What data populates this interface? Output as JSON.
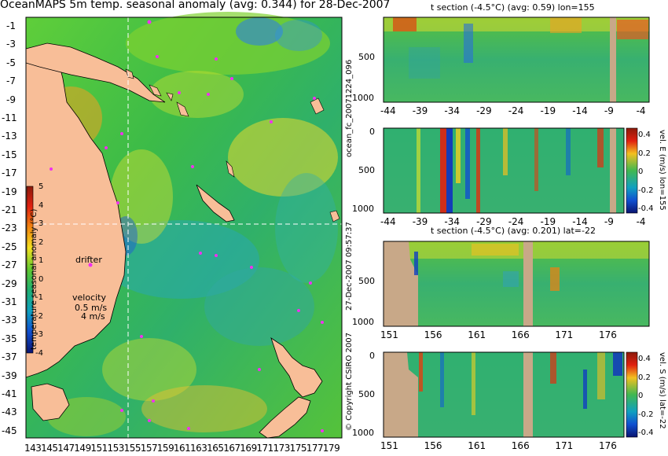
{
  "map": {
    "title": "OceanMAPS 5m temp. seasonal anomaly (avg: 0.344) for 28-Dec-2007",
    "lat_labels": [
      "-1",
      "-3",
      "-5",
      "-7",
      "-9",
      "-11",
      "-13",
      "-15",
      "-17",
      "-19",
      "-21",
      "-23",
      "-25",
      "-27",
      "-29",
      "-31",
      "-33",
      "-35",
      "-37",
      "-39",
      "-41",
      "-43",
      "-45"
    ],
    "lon_labels": [
      "143",
      "145",
      "147",
      "149",
      "151",
      "153",
      "155",
      "157",
      "159",
      "161",
      "163",
      "165",
      "167",
      "169",
      "171",
      "173",
      "175",
      "177",
      "179"
    ],
    "colorbar_ticks": [
      "5",
      "4",
      "3",
      "2",
      "1",
      "0",
      "-1",
      "-2",
      "-3",
      "-4"
    ],
    "colorbar_label": "temperature seasonal anomaly (°C)",
    "drifter_label": "drifter",
    "velocity_label": "velocity",
    "velocity_scale_1": "0.5 m/s",
    "velocity_scale_2": "4 m/s",
    "section_lon": 155,
    "section_lat": -22
  },
  "side_labels": {
    "run": "ocean_fc_20071224_096",
    "issued": "27-Dec-2007 09:57:37",
    "copyright": "© Copyright CSIRO 2007"
  },
  "panels": [
    {
      "title": "t section (-4.5°C) (avg: 0.59) lon=155",
      "y_ticks": [
        "500",
        "1000"
      ],
      "x_ticks": [
        "-44",
        "-39",
        "-34",
        "-29",
        "-24",
        "-19",
        "-14",
        "-9",
        "-4"
      ],
      "has_colorbar": false
    },
    {
      "title": "",
      "y_ticks": [
        "0",
        "500",
        "1000"
      ],
      "x_ticks": [
        "-44",
        "-39",
        "-34",
        "-29",
        "-24",
        "-19",
        "-14",
        "-9",
        "-4"
      ],
      "has_colorbar": true,
      "colorbar_ticks": [
        "0.4",
        "0.2",
        "0",
        "-0.2",
        "-0.4"
      ],
      "colorbar_label": "vel. E (m/s) lon=155"
    },
    {
      "title": "t section (-4.5°C) (avg: 0.201) lat=-22",
      "y_ticks": [
        "500",
        "1000"
      ],
      "x_ticks": [
        "151",
        "156",
        "161",
        "166",
        "171",
        "176"
      ],
      "has_colorbar": false
    },
    {
      "title": "",
      "y_ticks": [
        "0",
        "500",
        "1000"
      ],
      "x_ticks": [
        "151",
        "156",
        "161",
        "166",
        "171",
        "176"
      ],
      "has_colorbar": true,
      "colorbar_ticks": [
        "0.4",
        "0.2",
        "0",
        "-0.2",
        "-0.4"
      ],
      "colorbar_label": "vel. S (m/s) lat=-22"
    }
  ]
}
